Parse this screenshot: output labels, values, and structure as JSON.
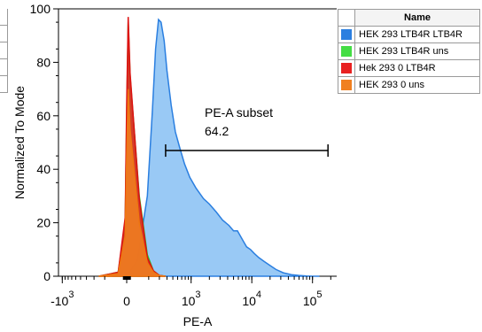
{
  "chart_data": {
    "type": "area",
    "xlabel": "PE-A",
    "ylabel": "Normalized To Mode",
    "x_scale": "biexponential",
    "xlim": [
      -1500,
      200000
    ],
    "ylim": [
      0,
      100
    ],
    "y_ticks": [
      0,
      20,
      40,
      60,
      80,
      100
    ],
    "x_tick_labels": [
      {
        "base": "-10",
        "exp": "3",
        "value": -1000
      },
      {
        "base": "0",
        "exp": "",
        "value": 0
      },
      {
        "base": "10",
        "exp": "3",
        "value": 1000
      },
      {
        "base": "10",
        "exp": "4",
        "value": 10000
      },
      {
        "base": "10",
        "exp": "5",
        "value": 100000
      }
    ],
    "series": [
      {
        "name": "HEK 293 LTB4R LTB4R",
        "fill": "#99c9f5",
        "stroke": "#2b7fe0",
        "x": [
          -150,
          -30,
          50,
          130,
          190,
          230,
          260,
          290,
          320,
          360,
          400,
          470,
          550,
          650,
          780,
          950,
          1200,
          1600,
          2000,
          2600,
          3300,
          4200,
          5000,
          5800,
          6500,
          7300,
          8200,
          9500,
          11000,
          13000,
          16000,
          20000,
          25000,
          33000,
          45000,
          60000,
          80000,
          100000,
          130000
        ],
        "y": [
          0,
          0,
          1,
          6,
          30,
          62,
          85,
          96,
          95,
          88,
          77,
          64,
          54,
          48,
          42,
          37,
          33,
          29,
          27,
          24,
          21,
          19,
          17,
          17,
          15,
          13,
          11,
          10,
          8.5,
          7,
          5.5,
          4,
          2.5,
          1.3,
          0.6,
          0.3,
          0.1,
          0,
          0
        ]
      },
      {
        "name": "HEK 293 LTB4R uns",
        "fill": "#44dd44",
        "stroke": "#22cc22",
        "x": [
          -250,
          -120,
          -40,
          0,
          40,
          90,
          140,
          190,
          240,
          300,
          380
        ],
        "y": [
          0,
          1.5,
          20,
          60,
          95,
          75,
          30,
          8,
          2,
          0.3,
          0
        ]
      },
      {
        "name": "Hek 293 0 LTB4R",
        "fill": "#e82020",
        "stroke": "#dd1111",
        "x": [
          -250,
          -120,
          -40,
          0,
          40,
          90,
          140,
          190,
          240,
          300,
          380
        ],
        "y": [
          0,
          1.5,
          22,
          65,
          97,
          76,
          29,
          7,
          2,
          0.3,
          0
        ]
      },
      {
        "name": "HEK 293 0 uns",
        "fill": "#f08020",
        "stroke": "#ee7711",
        "x": [
          -250,
          -120,
          -40,
          0,
          40,
          90,
          140,
          190,
          240,
          300,
          380
        ],
        "y": [
          0,
          1,
          15,
          45,
          70,
          55,
          20,
          5,
          1.5,
          0.2,
          0
        ]
      }
    ],
    "gate": {
      "label": "PE-A subset",
      "value": "64.2",
      "x_start": 380,
      "x_end": 180000,
      "y": 47
    },
    "legend": {
      "header": "Name",
      "position": "right"
    }
  }
}
